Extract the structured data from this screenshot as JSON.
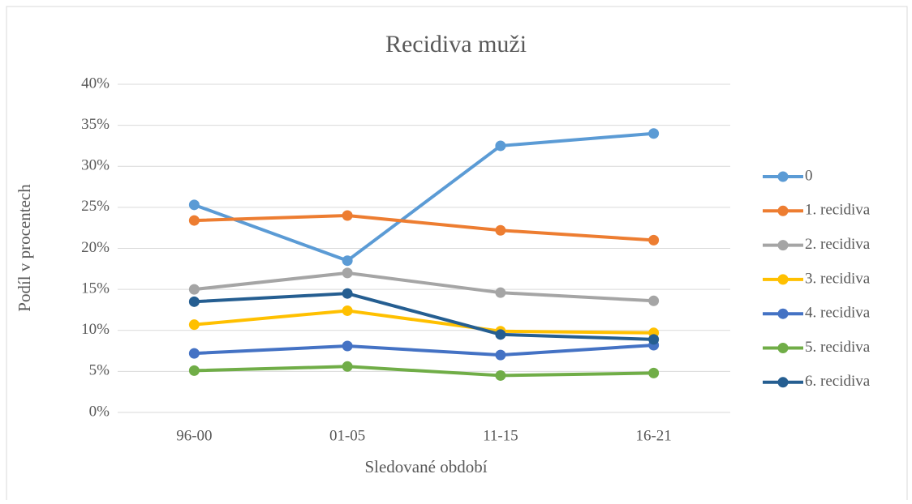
{
  "chart_data": {
    "type": "line",
    "title": "Recidiva muži",
    "x_label": "Sledované období",
    "y_label": "Podíl v procentech",
    "categories": [
      "96-00",
      "01-05",
      "11-15",
      "16-21"
    ],
    "series": [
      {
        "name": "0",
        "color": "#5b9bd5",
        "values": [
          25.3,
          18.5,
          32.5,
          34.0
        ]
      },
      {
        "name": "1. recidiva",
        "color": "#ed7d31",
        "values": [
          23.4,
          24.0,
          22.2,
          21.0
        ]
      },
      {
        "name": "2. recidiva",
        "color": "#a5a5a5",
        "values": [
          15.0,
          17.0,
          14.6,
          13.6
        ]
      },
      {
        "name": "3. recidiva",
        "color": "#ffc000",
        "values": [
          10.7,
          12.4,
          9.9,
          9.7
        ]
      },
      {
        "name": "4. recidiva",
        "color": "#4472c4",
        "values": [
          7.2,
          8.1,
          7.0,
          8.2
        ]
      },
      {
        "name": "5. recidiva",
        "color": "#70ad47",
        "values": [
          5.1,
          5.6,
          4.5,
          4.8
        ]
      },
      {
        "name": "6. recidiva",
        "color": "#255e91",
        "values": [
          13.5,
          14.5,
          9.5,
          8.9
        ]
      }
    ],
    "ylim": [
      0,
      40
    ],
    "yticks": [
      {
        "value": 0,
        "label": "0%"
      },
      {
        "value": 5,
        "label": "5%"
      },
      {
        "value": 10,
        "label": "10%"
      },
      {
        "value": 15,
        "label": "15%"
      },
      {
        "value": 20,
        "label": "20%"
      },
      {
        "value": 25,
        "label": "25%"
      },
      {
        "value": 30,
        "label": "30%"
      },
      {
        "value": 35,
        "label": "35%"
      },
      {
        "value": 40,
        "label": "40%"
      }
    ],
    "grid": true,
    "legend": "right"
  }
}
